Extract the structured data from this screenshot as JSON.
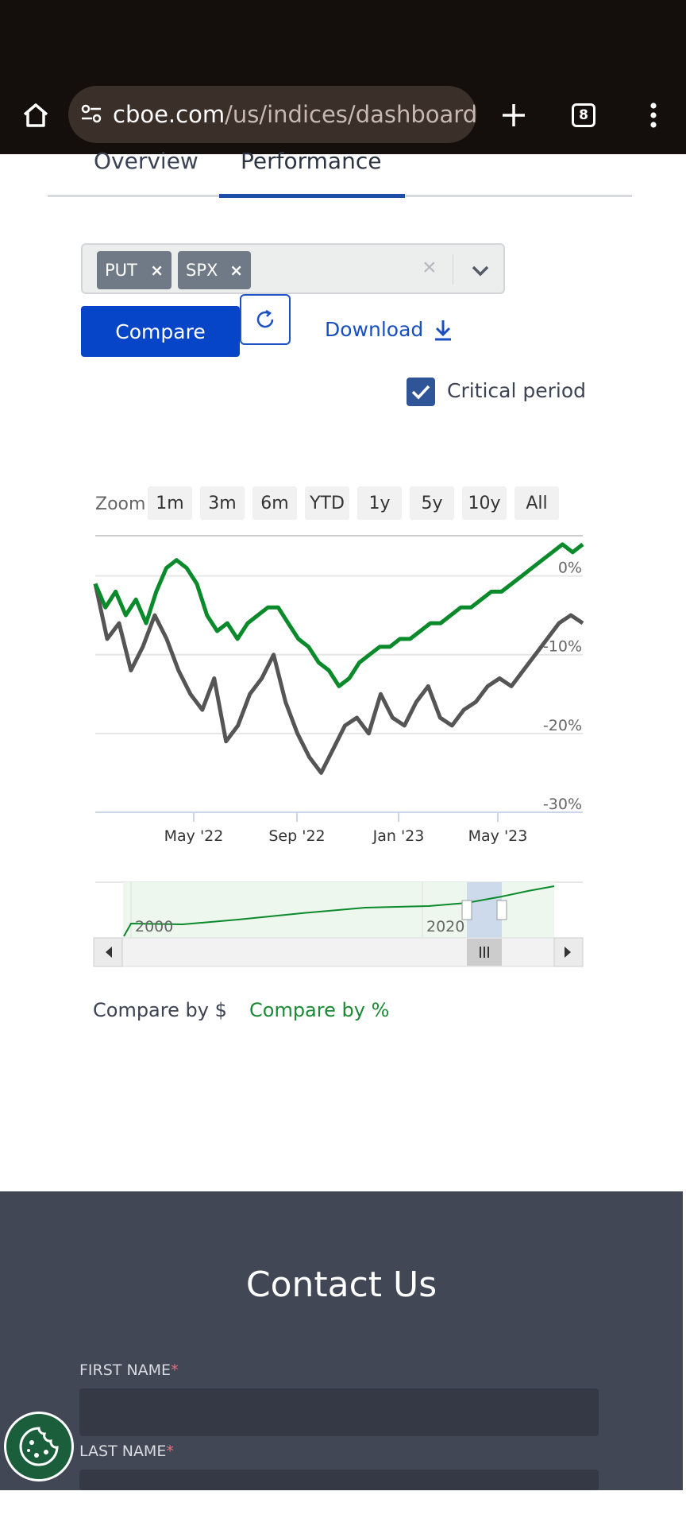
{
  "browser": {
    "url_host": "cboe.com",
    "url_path": "/us/indices/dashboard/p",
    "tab_count": "8",
    "icons": [
      "home-icon",
      "site-settings-icon",
      "new-tab-icon",
      "tab-switcher-icon",
      "more-menu-icon"
    ]
  },
  "tabs": [
    {
      "label": "Overview",
      "active": false
    },
    {
      "label": "Performance",
      "active": true
    }
  ],
  "selector": {
    "chips": [
      {
        "label": "PUT",
        "remove": "×"
      },
      {
        "label": "SPX",
        "remove": "×"
      }
    ],
    "clear": "×"
  },
  "actions": {
    "compare_label": "Compare",
    "download_label": "Download"
  },
  "critical_period": {
    "label": "Critical period",
    "checked": true
  },
  "chart": {
    "zoom_label": "Zoom",
    "zoom_options": [
      "1m",
      "3m",
      "6m",
      "YTD",
      "1y",
      "5y",
      "10y",
      "All"
    ],
    "navigator_labels": [
      "2000",
      "2020"
    ],
    "colors": {
      "put": "#0a8a2a",
      "spx": "#555555",
      "grid": "#e6e6e6"
    }
  },
  "chart_data": {
    "type": "line",
    "x_tick_labels": [
      "May '22",
      "Sep '22",
      "Jan '23",
      "May '23"
    ],
    "y_tick_labels": [
      "0%",
      "-10%",
      "-20%",
      "-30%"
    ],
    "ylim": [
      -30,
      5
    ],
    "series": [
      {
        "name": "PUT",
        "color": "#0a8a2a",
        "values": [
          -1,
          -4,
          -2,
          -5,
          -3,
          -6,
          -2,
          1,
          2,
          1,
          -1,
          -5,
          -7,
          -6,
          -8,
          -6,
          -5,
          -4,
          -4,
          -6,
          -8,
          -9,
          -11,
          -12,
          -14,
          -13,
          -11,
          -10,
          -9,
          -9,
          -8,
          -8,
          -7,
          -6,
          -6,
          -5,
          -4,
          -4,
          -3,
          -2,
          -2,
          -1,
          0,
          1,
          2,
          3,
          4,
          3,
          4
        ]
      },
      {
        "name": "SPX",
        "color": "#555555",
        "values": [
          -1,
          -8,
          -6,
          -12,
          -9,
          -5,
          -8,
          -12,
          -15,
          -17,
          -13,
          -21,
          -19,
          -15,
          -13,
          -10,
          -16,
          -20,
          -23,
          -25,
          -22,
          -19,
          -18,
          -20,
          -15,
          -18,
          -19,
          -16,
          -14,
          -18,
          -19,
          -17,
          -16,
          -14,
          -13,
          -14,
          -12,
          -10,
          -8,
          -6,
          -5,
          -6
        ]
      }
    ],
    "grid": true
  },
  "compare_options": [
    {
      "label": "Compare by $",
      "active": false
    },
    {
      "label": "Compare by %",
      "active": true
    }
  ],
  "contact": {
    "title": "Contact Us",
    "fields": [
      {
        "label": "FIRST NAME",
        "required_mark": "*"
      },
      {
        "label": "LAST NAME",
        "required_mark": "*"
      }
    ]
  }
}
